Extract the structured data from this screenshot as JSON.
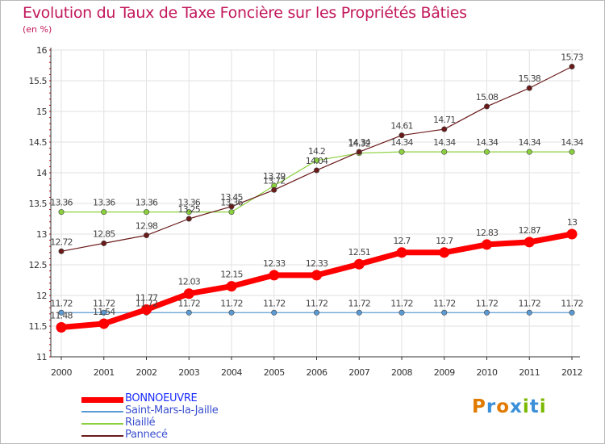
{
  "page": {
    "title": "Evolution du Taux de Taxe Foncière sur les Propriétés Bâties",
    "unit": "(en %)"
  },
  "logo": {
    "text": "Proxiti",
    "colors": [
      "#e07b00",
      "#3a8fd8",
      "#e07b00",
      "#3a8fd8",
      "#7ab800",
      "#3a8fd8",
      "#7ab800"
    ]
  },
  "chart_data": {
    "type": "line",
    "title": "Evolution du Taux de Taxe Foncière sur les Propriétés Bâties",
    "ylabel": "(en %)",
    "x": [
      "2000",
      "2001",
      "2002",
      "2003",
      "2004",
      "2005",
      "2006",
      "2007",
      "2008",
      "2009",
      "2010",
      "2011",
      "2012"
    ],
    "ylim": [
      11,
      16
    ],
    "yticks": [
      "11",
      "11.5",
      "12",
      "12.5",
      "13",
      "13.5",
      "14",
      "14.5",
      "15",
      "15.5",
      "16"
    ],
    "grid": true,
    "legend_position": "bottom-left",
    "series": [
      {
        "name": "BONNOEUVRE",
        "color": "#ff0000",
        "values": [
          11.48,
          11.54,
          11.77,
          12.03,
          12.15,
          12.33,
          12.33,
          12.51,
          12.7,
          12.7,
          12.83,
          12.87,
          13.0
        ],
        "labels": [
          "11.48",
          "11.54",
          "11.77",
          "12.03",
          "12.15",
          "12.33",
          "12.33",
          "12.51",
          "12.7",
          "12.7",
          "12.83",
          "12.87",
          "13"
        ]
      },
      {
        "name": "Saint-Mars-la-Jaille",
        "color": "#5b9bd5",
        "values": [
          11.72,
          11.72,
          11.72,
          11.72,
          11.72,
          11.72,
          11.72,
          11.72,
          11.72,
          11.72,
          11.72,
          11.72,
          11.72
        ],
        "labels": [
          "11.72",
          "11.72",
          "11.72",
          "11.72",
          "11.72",
          "11.72",
          "11.72",
          "11.72",
          "11.72",
          "11.72",
          "11.72",
          "11.72",
          "11.72"
        ]
      },
      {
        "name": "Riaillé",
        "color": "#8bd13d",
        "values": [
          13.36,
          13.36,
          13.36,
          13.36,
          13.36,
          13.79,
          14.2,
          14.32,
          14.34,
          14.34,
          14.34,
          14.34,
          14.34
        ],
        "labels": [
          "13.36",
          "13.36",
          "13.36",
          "13.36",
          "13.36",
          "13.79",
          "14.2",
          "14.32",
          "14.34",
          "14.34",
          "14.34",
          "14.34",
          "14.34"
        ]
      },
      {
        "name": "Pannecé",
        "color": "#6b1a1a",
        "values": [
          12.72,
          12.85,
          12.98,
          13.25,
          13.45,
          13.72,
          14.04,
          14.34,
          14.61,
          14.71,
          15.08,
          15.38,
          15.73
        ],
        "labels": [
          "12.72",
          "12.85",
          "12.98",
          "13.25",
          "13.45",
          "13.72",
          "14.04",
          "14.34",
          "14.61",
          "14.71",
          "15.08",
          "15.38",
          "15.73"
        ]
      }
    ]
  }
}
